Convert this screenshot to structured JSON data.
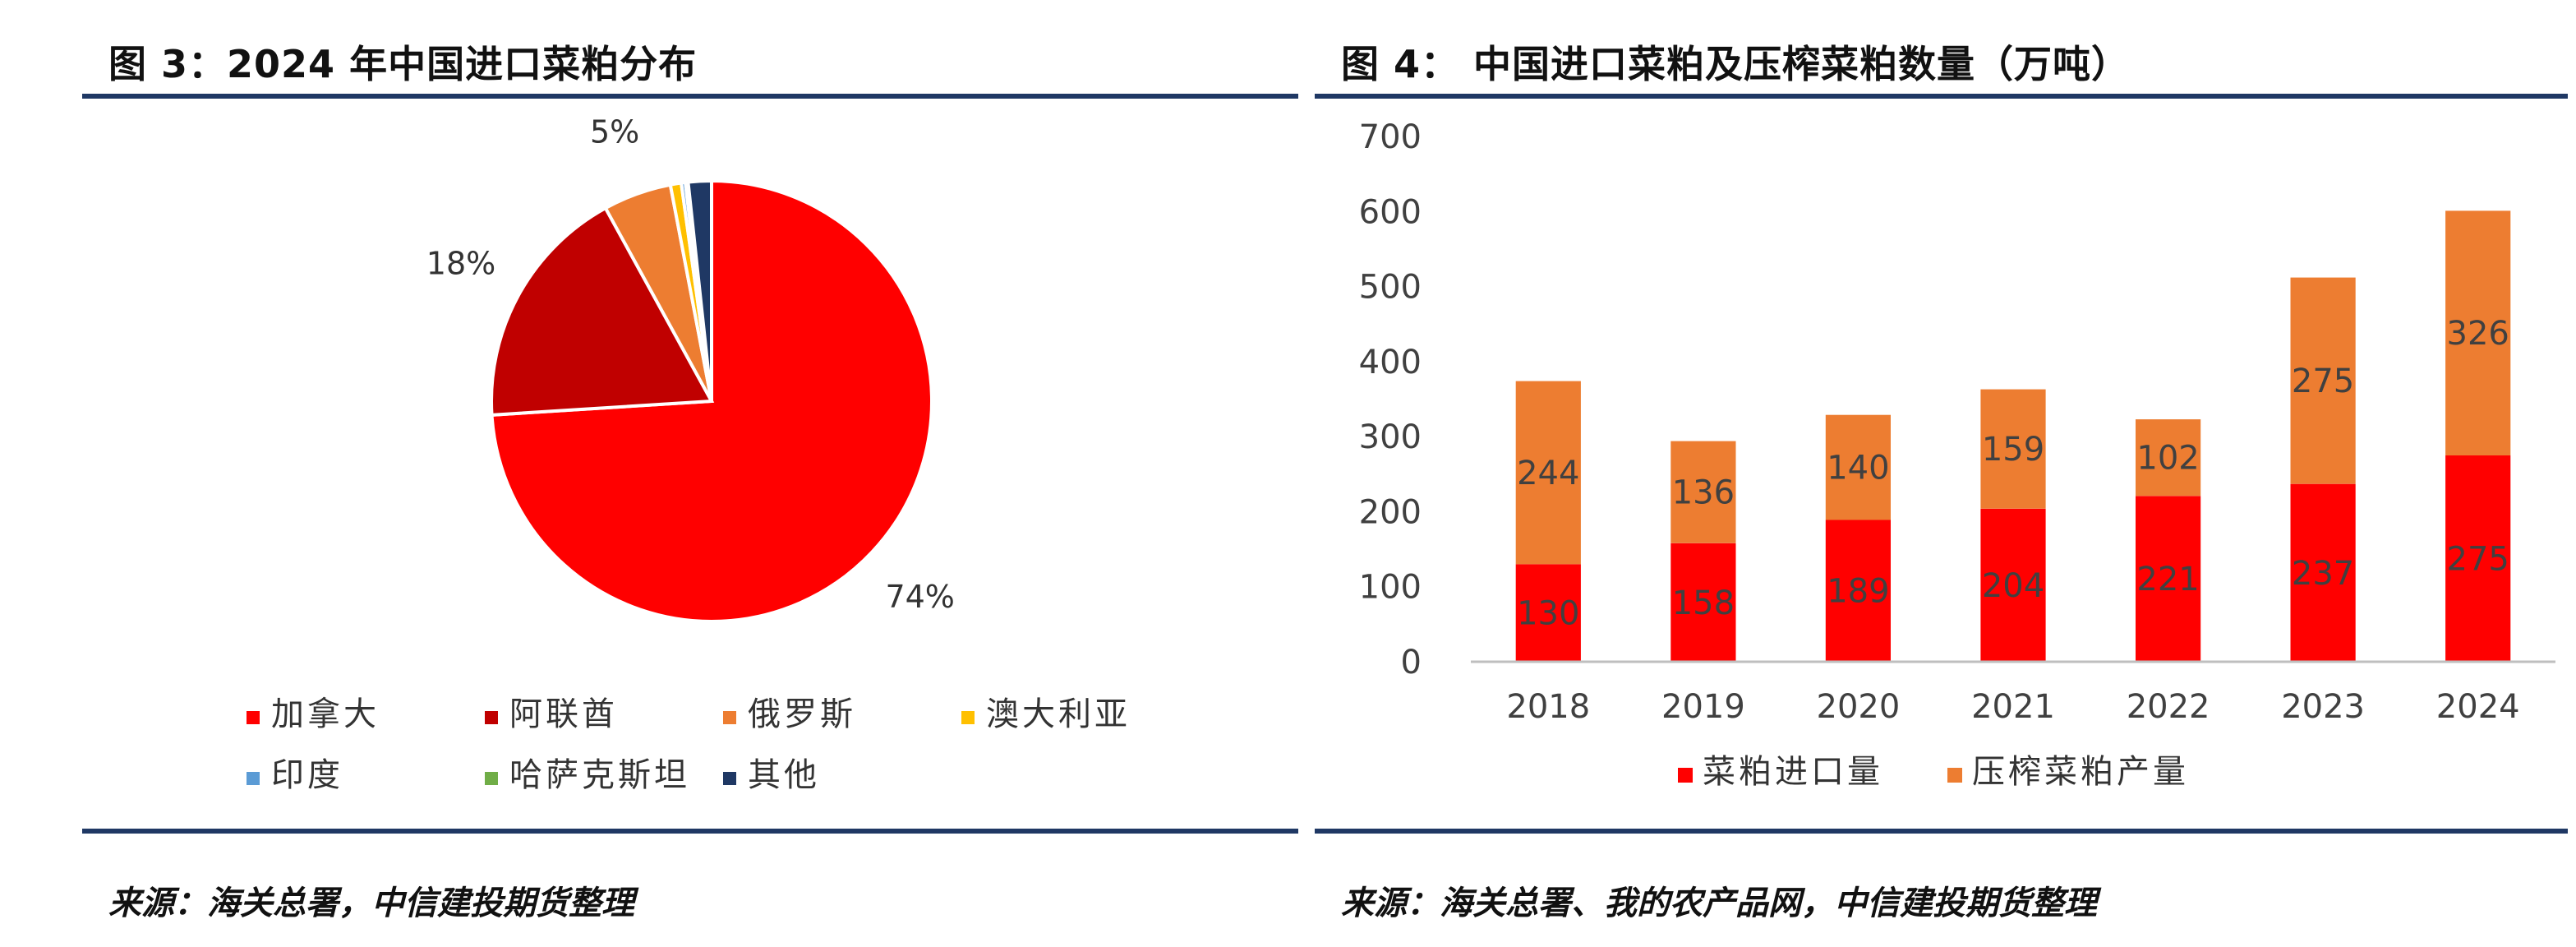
{
  "left": {
    "title": "图 3：2024 年中国进口菜粕分布",
    "source": "来源：海关总署，中信建投期货整理"
  },
  "right": {
    "title": "图 4： 中国进口菜粕及压榨菜粕数量（万吨）",
    "source": "来源：海关总署、我的农产品网，中信建投期货整理"
  },
  "colors": {
    "rule": "#1f3864",
    "canada": "#ff0000",
    "uae": "#c00000",
    "russia": "#ed7d31",
    "australia": "#ffc000",
    "india": "#5b9bd5",
    "kazakhstan": "#70ad47",
    "other": "#1f3864",
    "import": "#ff0000",
    "crush": "#ed7d31"
  },
  "chart_data": [
    {
      "type": "pie",
      "title": "",
      "slices": [
        {
          "label": "加拿大",
          "value": 74,
          "display": "74%",
          "color": "#ff0000"
        },
        {
          "label": "阿联酋",
          "value": 18,
          "display": "18%",
          "color": "#c00000"
        },
        {
          "label": "俄罗斯",
          "value": 5,
          "display": "5%",
          "color": "#ed7d31"
        },
        {
          "label": "澳大利亚",
          "value": 0.8,
          "display": "",
          "color": "#ffc000"
        },
        {
          "label": "印度",
          "value": 0.3,
          "display": "",
          "color": "#5b9bd5"
        },
        {
          "label": "哈萨克斯坦",
          "value": 0.2,
          "display": "",
          "color": "#70ad47"
        },
        {
          "label": "其他",
          "value": 1.7,
          "display": "",
          "color": "#1f3864"
        }
      ],
      "legend_position": "bottom"
    },
    {
      "type": "bar",
      "stacked": true,
      "categories": [
        "2018",
        "2019",
        "2020",
        "2021",
        "2022",
        "2023",
        "2024"
      ],
      "series": [
        {
          "name": "菜粕进口量",
          "values": [
            130,
            158,
            189,
            204,
            221,
            237,
            275
          ],
          "color": "#ff0000"
        },
        {
          "name": "压榨菜粕产量",
          "values": [
            244,
            136,
            140,
            159,
            102,
            275,
            326
          ],
          "color": "#ed7d31"
        }
      ],
      "ylim": [
        0,
        700
      ],
      "yticks": [
        0,
        100,
        200,
        300,
        400,
        500,
        600,
        700
      ],
      "grid": false,
      "legend_position": "bottom"
    }
  ]
}
